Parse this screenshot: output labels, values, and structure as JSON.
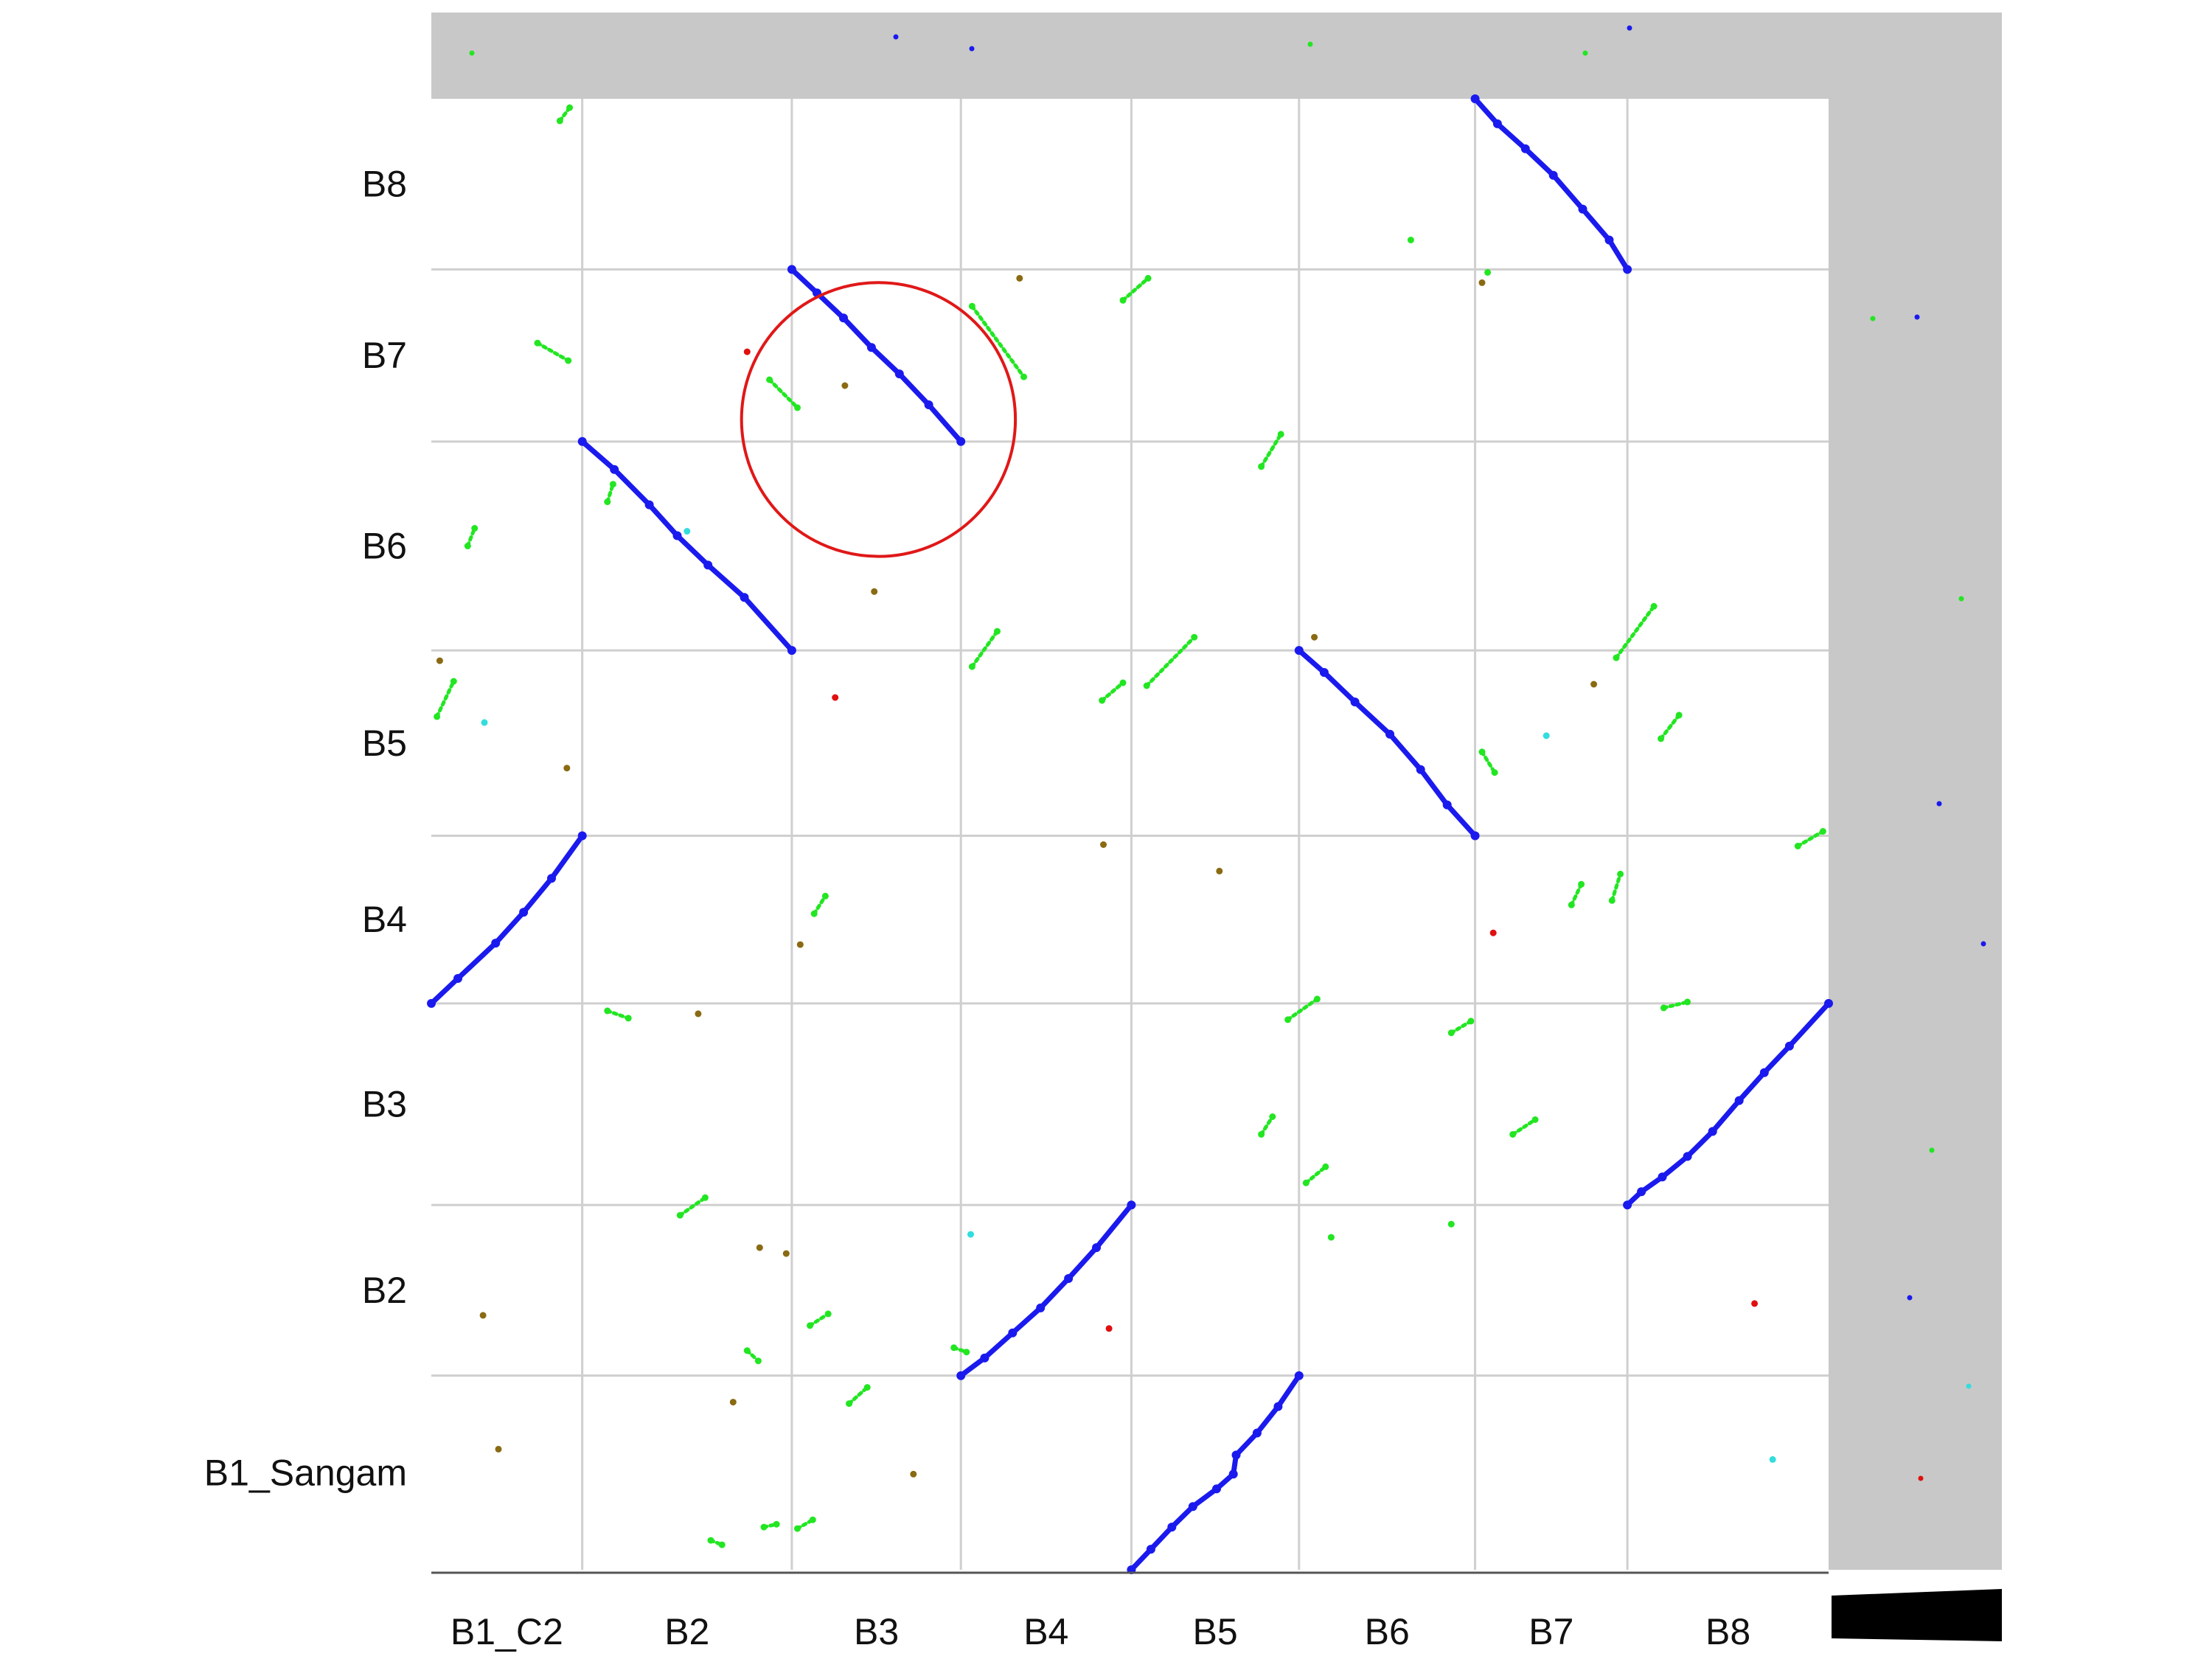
{
  "colors": {
    "background": "#ffffff",
    "margin_band": "#c8c8c8",
    "grid": "#cfcfcf",
    "axis": "#555555",
    "syntenic_block": "#1a1aee",
    "minor_hit": "#22e622",
    "weak_hit": "#8a6a12",
    "rare_hit": "#e01010",
    "sparse_hit": "#33dddd",
    "highlight_circle": "#e01818",
    "scale_bar": "#000000"
  },
  "chart_data": {
    "type": "scatter",
    "title": "",
    "xlabel": "",
    "ylabel": "",
    "x_categories": [
      "B1_C2",
      "B2",
      "B3",
      "B4",
      "B5",
      "B6",
      "B7",
      "B8"
    ],
    "y_categories": [
      "B1_Sangam",
      "B2",
      "B3",
      "B4",
      "B5",
      "B6",
      "B7",
      "B8"
    ],
    "x_boundaries": [
      0,
      10.8,
      25.8,
      37.9,
      50.1,
      62.1,
      74.7,
      85.6,
      100
    ],
    "y_boundaries": [
      0,
      13.2,
      24.8,
      38.5,
      49.9,
      62.5,
      76.7,
      88.4,
      100
    ],
    "xlim": [
      0,
      100
    ],
    "ylim": [
      0,
      100
    ],
    "grid": true,
    "legend": "none",
    "series": [
      {
        "kind": "syntenic_block",
        "points": [
          [
            50.1,
            0.0
          ],
          [
            51.5,
            1.4
          ],
          [
            53.0,
            2.9
          ],
          [
            54.5,
            4.3
          ],
          [
            56.2,
            5.5
          ],
          [
            57.4,
            6.5
          ],
          [
            57.6,
            7.8
          ],
          [
            59.1,
            9.3
          ],
          [
            60.6,
            11.1
          ],
          [
            62.1,
            13.2
          ],
          [
            37.9,
            13.2
          ],
          [
            39.6,
            14.4
          ],
          [
            41.6,
            16.1
          ],
          [
            43.6,
            17.8
          ],
          [
            45.6,
            19.8
          ],
          [
            47.6,
            21.9
          ],
          [
            50.1,
            24.8
          ],
          [
            85.6,
            24.8
          ],
          [
            86.6,
            25.7
          ],
          [
            88.1,
            26.7
          ],
          [
            89.9,
            28.1
          ],
          [
            91.7,
            29.8
          ],
          [
            93.6,
            31.9
          ],
          [
            95.4,
            33.8
          ],
          [
            97.2,
            35.6
          ],
          [
            100.0,
            38.5
          ],
          [
            0.0,
            38.5
          ],
          [
            1.9,
            40.2
          ],
          [
            4.6,
            42.6
          ],
          [
            6.6,
            44.7
          ],
          [
            8.6,
            47.0
          ],
          [
            10.8,
            49.9
          ],
          [
            62.1,
            62.5
          ],
          [
            63.9,
            61.0
          ],
          [
            66.1,
            59.0
          ],
          [
            68.6,
            56.8
          ],
          [
            70.8,
            54.4
          ],
          [
            72.7,
            52.0
          ],
          [
            74.7,
            49.9
          ],
          [
            10.8,
            76.7
          ],
          [
            13.1,
            74.8
          ],
          [
            15.6,
            72.4
          ],
          [
            17.6,
            70.3
          ],
          [
            19.8,
            68.3
          ],
          [
            22.4,
            66.1
          ],
          [
            25.8,
            62.5
          ],
          [
            25.8,
            88.4
          ],
          [
            27.6,
            86.8
          ],
          [
            29.5,
            85.1
          ],
          [
            31.5,
            83.1
          ],
          [
            33.5,
            81.3
          ],
          [
            35.6,
            79.2
          ],
          [
            37.9,
            76.7
          ],
          [
            74.7,
            100.0
          ],
          [
            76.3,
            98.3
          ],
          [
            78.3,
            96.6
          ],
          [
            80.3,
            94.8
          ],
          [
            82.4,
            92.5
          ],
          [
            84.3,
            90.4
          ],
          [
            85.6,
            88.4
          ]
        ]
      },
      {
        "kind": "minor_hit",
        "points": [
          [
            20.0,
            2.0
          ],
          [
            20.8,
            1.7
          ],
          [
            23.8,
            2.9
          ],
          [
            24.7,
            3.1
          ],
          [
            26.2,
            2.8
          ],
          [
            27.3,
            3.4
          ],
          [
            29.9,
            11.3
          ],
          [
            31.2,
            12.4
          ],
          [
            22.6,
            14.9
          ],
          [
            23.4,
            14.2
          ],
          [
            27.1,
            16.6
          ],
          [
            28.4,
            17.4
          ],
          [
            37.4,
            15.1
          ],
          [
            38.3,
            14.8
          ],
          [
            64.4,
            22.6
          ],
          [
            73.0,
            23.5
          ],
          [
            17.8,
            24.1
          ],
          [
            19.6,
            25.3
          ],
          [
            62.6,
            26.3
          ],
          [
            64.0,
            27.4
          ],
          [
            77.4,
            29.6
          ],
          [
            79.0,
            30.6
          ],
          [
            59.4,
            29.6
          ],
          [
            60.2,
            30.8
          ],
          [
            12.6,
            38.0
          ],
          [
            14.1,
            37.5
          ],
          [
            61.3,
            37.4
          ],
          [
            63.4,
            38.8
          ],
          [
            73.0,
            36.5
          ],
          [
            74.4,
            37.3
          ],
          [
            88.2,
            38.2
          ],
          [
            89.9,
            38.6
          ],
          [
            81.6,
            45.2
          ],
          [
            82.3,
            46.6
          ],
          [
            84.5,
            45.5
          ],
          [
            85.1,
            47.3
          ],
          [
            97.8,
            49.2
          ],
          [
            99.6,
            50.2
          ],
          [
            27.4,
            44.6
          ],
          [
            28.2,
            45.8
          ],
          [
            0.4,
            58.0
          ],
          [
            1.6,
            60.4
          ],
          [
            48.0,
            59.1
          ],
          [
            49.5,
            60.3
          ],
          [
            88.0,
            56.5
          ],
          [
            89.3,
            58.1
          ],
          [
            75.2,
            55.6
          ],
          [
            76.1,
            54.2
          ],
          [
            2.6,
            69.6
          ],
          [
            3.1,
            70.8
          ],
          [
            51.2,
            60.1
          ],
          [
            54.6,
            63.4
          ],
          [
            38.7,
            61.4
          ],
          [
            40.5,
            63.8
          ],
          [
            84.8,
            62.0
          ],
          [
            87.5,
            65.5
          ],
          [
            7.6,
            83.4
          ],
          [
            9.8,
            82.2
          ],
          [
            12.6,
            72.6
          ],
          [
            13.0,
            73.8
          ],
          [
            59.4,
            75.0
          ],
          [
            60.8,
            77.2
          ],
          [
            49.5,
            86.3
          ],
          [
            51.3,
            87.8
          ],
          [
            24.2,
            80.9
          ],
          [
            26.2,
            79.0
          ],
          [
            38.7,
            85.9
          ],
          [
            42.4,
            81.1
          ],
          [
            70.1,
            90.4
          ],
          [
            75.6,
            88.2
          ],
          [
            9.2,
            98.5
          ],
          [
            9.9,
            99.4
          ]
        ]
      },
      {
        "kind": "weak_hit",
        "points": [
          [
            4.8,
            8.2
          ],
          [
            21.6,
            11.4
          ],
          [
            34.5,
            6.5
          ],
          [
            25.4,
            21.5
          ],
          [
            3.7,
            17.3
          ],
          [
            23.5,
            21.9
          ],
          [
            19.1,
            37.8
          ],
          [
            26.4,
            42.5
          ],
          [
            63.2,
            63.4
          ],
          [
            9.7,
            54.5
          ],
          [
            31.7,
            66.5
          ],
          [
            0.6,
            61.8
          ],
          [
            29.6,
            80.5
          ],
          [
            42.1,
            87.8
          ],
          [
            75.2,
            87.5
          ],
          [
            48.1,
            49.3
          ],
          [
            56.4,
            47.5
          ],
          [
            83.2,
            60.2
          ]
        ]
      },
      {
        "kind": "rare_hit",
        "points": [
          [
            94.7,
            18.1
          ],
          [
            28.9,
            59.3
          ],
          [
            76.0,
            43.3
          ],
          [
            48.5,
            16.4
          ],
          [
            22.6,
            82.8
          ]
        ]
      },
      {
        "kind": "sparse_hit",
        "points": [
          [
            18.3,
            70.6
          ],
          [
            3.8,
            57.6
          ],
          [
            38.6,
            22.8
          ],
          [
            79.8,
            56.7
          ],
          [
            96.0,
            7.5
          ]
        ]
      }
    ],
    "annotations": [
      {
        "kind": "circle",
        "cx": 32.0,
        "cy": 78.2,
        "r": 9.8
      }
    ]
  }
}
